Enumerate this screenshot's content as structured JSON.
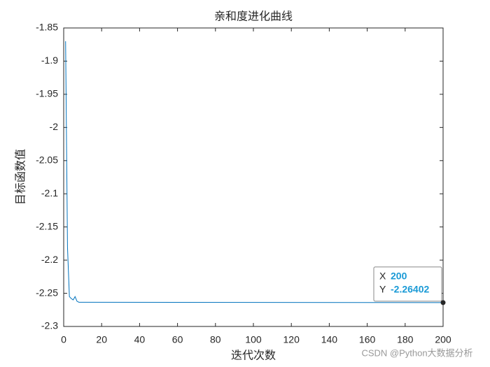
{
  "chart_data": {
    "type": "line",
    "title": "亲和度进化曲线",
    "x_label": "迭代次数",
    "y_label": "目标函数值",
    "x": [
      1,
      2,
      3,
      4,
      5,
      6,
      7,
      8,
      200
    ],
    "series": [
      {
        "color": "#0072bd",
        "values": [
          -1.87,
          -2.18,
          -2.255,
          -2.258,
          -2.26,
          -2.255,
          -2.262,
          -2.2635,
          -2.26402
        ]
      }
    ],
    "xlim": [
      0,
      200
    ],
    "xticks": [
      0,
      20,
      40,
      60,
      80,
      100,
      120,
      140,
      160,
      180,
      200
    ],
    "ylim": [
      -2.3,
      -1.85
    ],
    "yticks": [
      -2.3,
      -2.25,
      -2.2,
      -2.15,
      -2.1,
      -2.05,
      -2,
      -1.95,
      -1.9,
      -1.85
    ],
    "datatip": {
      "x_name": "X",
      "x": 200,
      "y_name": "Y",
      "y": -2.26402
    },
    "watermark": "CSDN @Python大数据分析"
  }
}
